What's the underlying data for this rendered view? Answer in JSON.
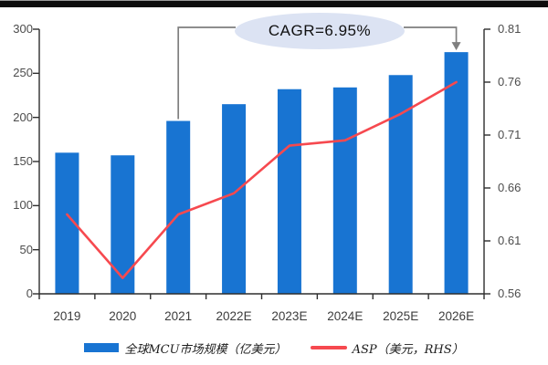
{
  "colors": {
    "bar": "#1874d2",
    "line": "#f6494f",
    "axis": "#2e2e2e",
    "connector": "#7f7f7f",
    "ellipse_fill": "#dce3f3",
    "top_bar": "#0d0d0d"
  },
  "annotation": {
    "cagr_label": "CAGR=6.95%"
  },
  "axes": {
    "left_ticks": [
      "300",
      "250",
      "200",
      "150",
      "100",
      "50",
      "0"
    ],
    "right_ticks": [
      "0.81",
      "0.76",
      "0.71",
      "0.66",
      "0.61",
      "0.56"
    ],
    "x_labels": [
      "2019",
      "2020",
      "2021",
      "2022E",
      "2023E",
      "2024E",
      "2025E",
      "2026E"
    ]
  },
  "legend": {
    "items": [
      {
        "label": "全球MCU市场规模（亿美元）",
        "swatch": "bar"
      },
      {
        "label": "ASP（美元，RHS）",
        "swatch": "line"
      }
    ]
  },
  "chart_data": {
    "type": "bar",
    "subtype": "bar+line combo, dual axis",
    "categories": [
      "2019",
      "2020",
      "2021",
      "2022E",
      "2023E",
      "2024E",
      "2025E",
      "2026E"
    ],
    "series": [
      {
        "name": "全球MCU市场规模（亿美元）",
        "type": "bar",
        "axis": "left",
        "values": [
          160,
          157,
          196,
          215,
          232,
          234,
          248,
          274
        ]
      },
      {
        "name": "ASP（美元，RHS）",
        "type": "line",
        "axis": "right",
        "values": [
          0.635,
          0.575,
          0.635,
          0.655,
          0.7,
          0.705,
          0.73,
          0.76
        ]
      }
    ],
    "left_axis": {
      "min": 0,
      "max": 300,
      "step": 50
    },
    "right_axis": {
      "min": 0.56,
      "max": 0.81,
      "step": 0.05
    },
    "annotations": [
      {
        "text": "CAGR=6.95%",
        "type": "ellipse-callout",
        "from_category": "2021",
        "to_category": "2026E"
      }
    ],
    "grid": false,
    "legend_position": "bottom"
  }
}
